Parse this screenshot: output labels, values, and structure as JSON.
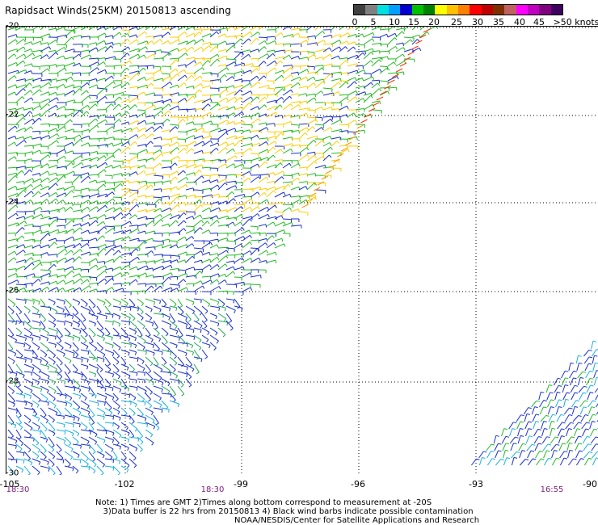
{
  "title": "Rapidsact Winds(25KM) 20150813 ascending",
  "legend": {
    "labels": [
      "0",
      "5",
      "10",
      "15",
      "20",
      "25",
      "30",
      "35",
      "40",
      "45",
      ">50 knots"
    ],
    "colors": [
      "#404040",
      "#808080",
      "#00e0e0",
      "#00a0ff",
      "#0000d0",
      "#00c000",
      "#008000",
      "#ffff00",
      "#ffc000",
      "#ff8000",
      "#ff0000",
      "#c00000",
      "#803000",
      "#c06060",
      "#ff00ff",
      "#c000c0",
      "#800080",
      "#400060"
    ]
  },
  "lat_labels": [
    "-20",
    "-22",
    "-24",
    "-26",
    "-28",
    "-30"
  ],
  "lon_labels": [
    "-105",
    "-102",
    "-99",
    "-96",
    "-93",
    "-90"
  ],
  "times": [
    "18:30",
    "18:30",
    "16:55"
  ],
  "notes": {
    "line1": "Note: 1) Times are GMT 2)Times along bottom correspond to measurement at -20S",
    "line2": "3)Data buffer is 22 hrs from 20150813 4) Black wind barbs indicate possible contamination",
    "credit": "NOAA/NESDIS/Center for Satellite Applications and Research"
  }
}
